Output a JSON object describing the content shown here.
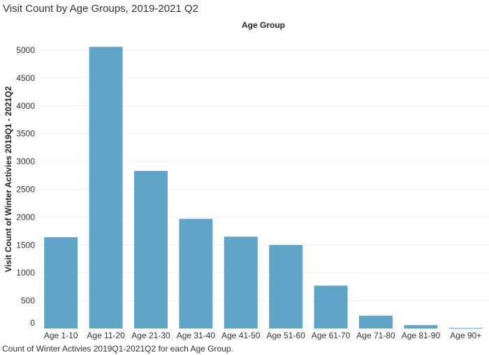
{
  "title": "Visit Count by Age Groups, 2019-2021 Q2",
  "footer": "Count of Winter Activies 2019Q1-2021Q2 for each Age Group.",
  "chart_data": {
    "type": "bar",
    "header_label": "Age Group",
    "ylabel": "Visit Count of Winter Activies 2019Q1 - 2021Q2",
    "categories": [
      "Age 1-10",
      "Age 11-20",
      "Age 21-30",
      "Age 31-40",
      "Age 41-50",
      "Age 51-60",
      "Age 61-70",
      "Age 71-80",
      "Age 81-90",
      "Age 90+"
    ],
    "values": [
      1640,
      5060,
      2830,
      1970,
      1650,
      1500,
      770,
      230,
      60,
      10
    ],
    "ylim": [
      0,
      5250
    ],
    "yticks": [
      0,
      500,
      1000,
      1500,
      2000,
      2500,
      3000,
      3500,
      4000,
      4500,
      5000
    ],
    "bar_color": "#60a4c8",
    "grid": true
  }
}
